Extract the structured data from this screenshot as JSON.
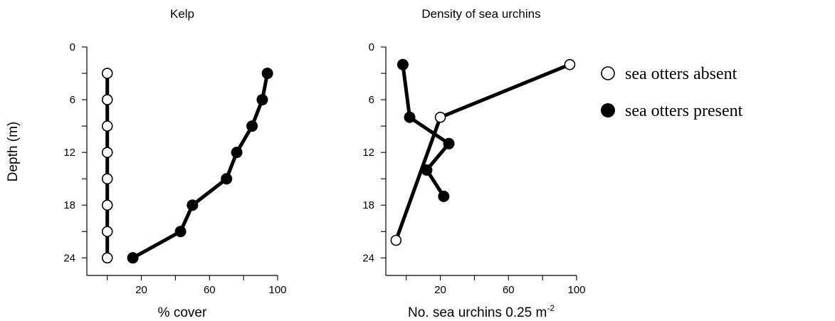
{
  "y_axis_label": "Depth (m)",
  "legend": {
    "items": [
      {
        "label": "sea otters absent",
        "marker": "open-circle"
      },
      {
        "label": "sea otters present",
        "marker": "filled-circle"
      }
    ]
  },
  "chart_data": [
    {
      "type": "line",
      "title": "Kelp",
      "xlabel": "% cover",
      "ylabel": "Depth (m)",
      "xlim": [
        -12,
        100
      ],
      "ylim": [
        0,
        26
      ],
      "y_inverted": true,
      "xticks": [
        0,
        20,
        40,
        60,
        80,
        100
      ],
      "xtick_labels": [
        "",
        "20",
        "",
        "60",
        "",
        "100"
      ],
      "yticks": [
        0,
        3,
        6,
        9,
        12,
        15,
        18,
        21,
        24
      ],
      "ytick_labels": [
        "0",
        "",
        "6",
        "",
        "12",
        "",
        "18",
        "",
        "24"
      ],
      "grid": false,
      "series": [
        {
          "name": "sea otters absent",
          "marker": "open",
          "points": [
            [
              0,
              3
            ],
            [
              0,
              6
            ],
            [
              0,
              9
            ],
            [
              0,
              12
            ],
            [
              0,
              15
            ],
            [
              0,
              18
            ],
            [
              0,
              21
            ],
            [
              0,
              24
            ]
          ]
        },
        {
          "name": "sea otters present",
          "marker": "filled",
          "points": [
            [
              94,
              3
            ],
            [
              91,
              6
            ],
            [
              85,
              9
            ],
            [
              76,
              12
            ],
            [
              70,
              15
            ],
            [
              50,
              18
            ],
            [
              43,
              21
            ],
            [
              15,
              24
            ]
          ]
        }
      ]
    },
    {
      "type": "line",
      "title": "Density of sea urchins",
      "xlabel": "No. sea urchins 0.25 m",
      "xlabel_superscript": "-2",
      "ylabel": "Depth (m)",
      "xlim": [
        -12,
        100
      ],
      "ylim": [
        0,
        26
      ],
      "y_inverted": true,
      "xticks": [
        0,
        20,
        40,
        60,
        80,
        100
      ],
      "xtick_labels": [
        "",
        "20",
        "",
        "60",
        "",
        "100"
      ],
      "yticks": [
        0,
        3,
        6,
        9,
        12,
        15,
        18,
        21,
        24
      ],
      "ytick_labels": [
        "0",
        "",
        "6",
        "",
        "12",
        "",
        "18",
        "",
        "24"
      ],
      "grid": false,
      "series": [
        {
          "name": "sea otters absent",
          "marker": "open",
          "points": [
            [
              96,
              2
            ],
            [
              20,
              8
            ],
            [
              -6,
              22
            ]
          ]
        },
        {
          "name": "sea otters present",
          "marker": "filled",
          "points": [
            [
              -2,
              2
            ],
            [
              2,
              8
            ],
            [
              25,
              11
            ],
            [
              12,
              14
            ],
            [
              22,
              17
            ]
          ]
        }
      ]
    }
  ]
}
